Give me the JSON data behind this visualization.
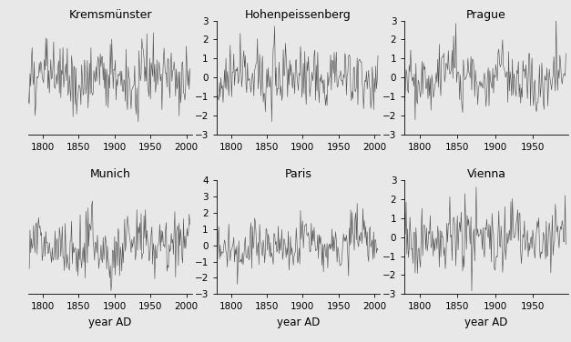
{
  "subplots": [
    {
      "title": "Kremsmünster",
      "xlim": [
        1780,
        2008
      ],
      "ylim": [
        -3,
        3
      ],
      "yticks": [
        -2,
        -1,
        0,
        1,
        2
      ],
      "show_ytick_labels": false,
      "show_ytick_marks": false,
      "show_left_spine": false,
      "xticks": [
        1800,
        1850,
        1900,
        1950,
        2000
      ],
      "xlabel": "",
      "row": 0,
      "col": 0,
      "seed": 101,
      "trend_slope": 0.012,
      "amp": 0.85,
      "start_year": 1767,
      "end_year": 2006,
      "extra_trend": true
    },
    {
      "title": "Hohenpeissenberg",
      "xlim": [
        1780,
        2008
      ],
      "ylim": [
        -3,
        3
      ],
      "yticks": [
        -3,
        -2,
        -1,
        0,
        1,
        2,
        3
      ],
      "show_ytick_labels": true,
      "show_ytick_marks": true,
      "show_left_spine": true,
      "xticks": [
        1800,
        1850,
        1900,
        1950,
        2000
      ],
      "xlabel": "",
      "row": 0,
      "col": 1,
      "seed": 202,
      "trend_slope": 0.004,
      "amp": 0.85,
      "start_year": 1781,
      "end_year": 2006,
      "extra_trend": false
    },
    {
      "title": "Prague",
      "xlim": [
        1780,
        1997
      ],
      "ylim": [
        -3,
        3
      ],
      "yticks": [
        -3,
        -2,
        -1,
        0,
        1,
        2,
        3
      ],
      "show_ytick_labels": true,
      "show_ytick_marks": true,
      "show_left_spine": true,
      "xticks": [
        1800,
        1850,
        1900,
        1950
      ],
      "xlabel": "",
      "row": 0,
      "col": 2,
      "seed": 303,
      "trend_slope": 0.005,
      "amp": 0.82,
      "start_year": 1771,
      "end_year": 1995,
      "extra_trend": false
    },
    {
      "title": "Munich",
      "xlim": [
        1780,
        2008
      ],
      "ylim": [
        -3,
        4
      ],
      "yticks": [
        -2,
        -1,
        0,
        1,
        2,
        3
      ],
      "show_ytick_labels": false,
      "show_ytick_marks": false,
      "show_left_spine": false,
      "xticks": [
        1800,
        1850,
        1900,
        1950,
        2000
      ],
      "xlabel": "year AD",
      "row": 1,
      "col": 0,
      "seed": 404,
      "trend_slope": 0.015,
      "amp": 0.9,
      "start_year": 1781,
      "end_year": 2006,
      "extra_trend": true
    },
    {
      "title": "Paris",
      "xlim": [
        1780,
        2008
      ],
      "ylim": [
        -3,
        4
      ],
      "yticks": [
        -3,
        -2,
        -1,
        0,
        1,
        2,
        3,
        4
      ],
      "show_ytick_labels": true,
      "show_ytick_marks": true,
      "show_left_spine": true,
      "xticks": [
        1800,
        1850,
        1900,
        1950,
        2000
      ],
      "xlabel": "year AD",
      "row": 1,
      "col": 1,
      "seed": 505,
      "trend_slope": 0.013,
      "amp": 0.75,
      "start_year": 1757,
      "end_year": 2006,
      "extra_trend": true
    },
    {
      "title": "Vienna",
      "xlim": [
        1780,
        1997
      ],
      "ylim": [
        -3,
        3
      ],
      "yticks": [
        -3,
        -2,
        -1,
        0,
        1,
        2,
        3
      ],
      "show_ytick_labels": true,
      "show_ytick_marks": true,
      "show_left_spine": true,
      "xticks": [
        1800,
        1850,
        1900,
        1950
      ],
      "xlabel": "year AD",
      "row": 1,
      "col": 2,
      "seed": 606,
      "trend_slope": 0.006,
      "amp": 0.85,
      "start_year": 1775,
      "end_year": 1995,
      "extra_trend": false
    }
  ],
  "line_color": "#555555",
  "line_width": 0.45,
  "title_fontsize": 9,
  "tick_fontsize": 7.5,
  "label_fontsize": 8.5,
  "bg_color": "#e8e8e8"
}
